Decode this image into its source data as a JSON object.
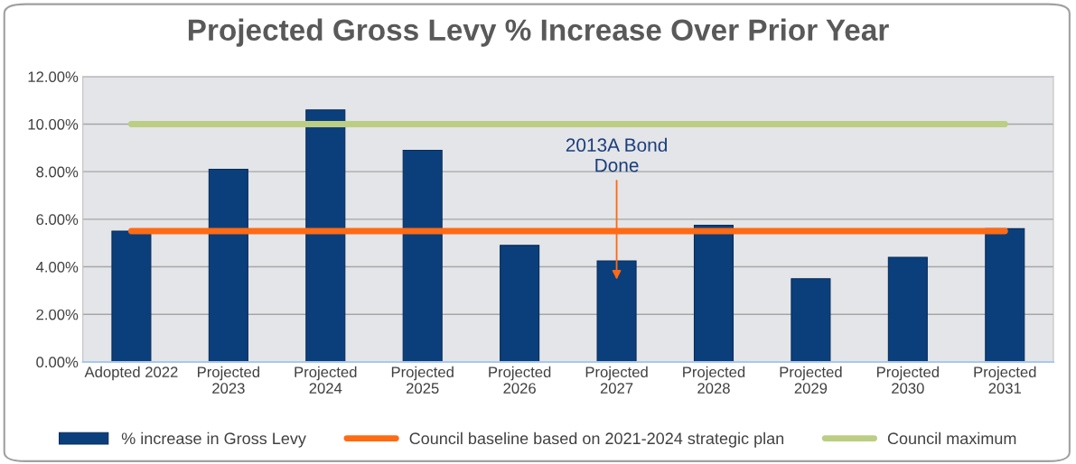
{
  "chart_data": {
    "type": "bar",
    "title": "Projected Gross Levy % Increase Over Prior Year",
    "categories": [
      "Adopted 2022",
      "Projected\n2023",
      "Projected\n2024",
      "Projected\n2025",
      "Projected\n2026",
      "Projected\n2027",
      "Projected\n2028",
      "Projected\n2029",
      "Projected\n2030",
      "Projected\n2031"
    ],
    "series": [
      {
        "name": "% increase in Gross Levy",
        "color": "#0b3f7c",
        "values": [
          5.5,
          8.1,
          10.6,
          8.9,
          4.9,
          4.25,
          5.75,
          3.5,
          4.4,
          5.6
        ]
      },
      {
        "name": "Council baseline based on 2021-2024 strategic plan",
        "type": "line",
        "color": "#ff6a13",
        "values": [
          5.5,
          5.5,
          5.5,
          5.5,
          5.5,
          5.5,
          5.5,
          5.5,
          5.5,
          5.5
        ]
      },
      {
        "name": "Council maximum",
        "type": "line",
        "color": "#bccd84",
        "values": [
          10,
          10,
          10,
          10,
          10,
          10,
          10,
          10,
          10,
          10
        ]
      }
    ],
    "annotations": [
      "2013A Bond\nDone"
    ],
    "ylim": [
      0,
      12
    ],
    "yticks": [
      {
        "value": 0,
        "label": "0.00%"
      },
      {
        "value": 2,
        "label": "2.00%"
      },
      {
        "value": 4,
        "label": "4.00%"
      },
      {
        "value": 6,
        "label": "6.00%"
      },
      {
        "value": 8,
        "label": "8.00%"
      },
      {
        "value": 10,
        "label": "10.00%"
      },
      {
        "value": 12,
        "label": "12.00%"
      }
    ],
    "grid": "y",
    "legend": "bottom",
    "marker": "none",
    "line_style": "solid"
  }
}
